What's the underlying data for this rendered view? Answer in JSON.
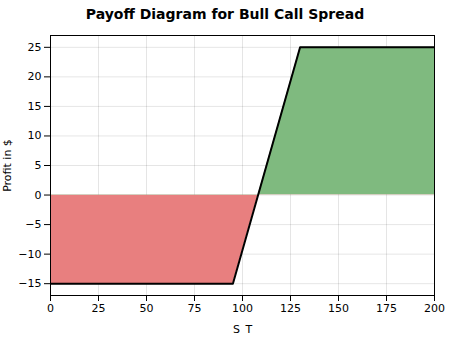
{
  "chart_data": {
    "type": "line",
    "title": "Payoff Diagram for Bull Call Spread",
    "xlabel": "S_T",
    "ylabel": "Profit in $",
    "x": [
      0,
      95,
      130,
      200
    ],
    "series": [
      {
        "type": "area",
        "colors": [
          "#e87f7f",
          "#7fba7f"
        ],
        "values": [
          -15,
          -15,
          25,
          25
        ]
      },
      {
        "type": "line",
        "color": "#000000",
        "values": [
          -15,
          -15,
          25,
          25
        ]
      }
    ],
    "xlim": [
      0,
      200
    ],
    "xticks": [
      0,
      25,
      50,
      75,
      100,
      125,
      150,
      175,
      200
    ],
    "ylim": [
      -17,
      27
    ],
    "yticks": [
      -15,
      -10,
      -5,
      0,
      5,
      10,
      15,
      20,
      25
    ],
    "grid": true
  }
}
